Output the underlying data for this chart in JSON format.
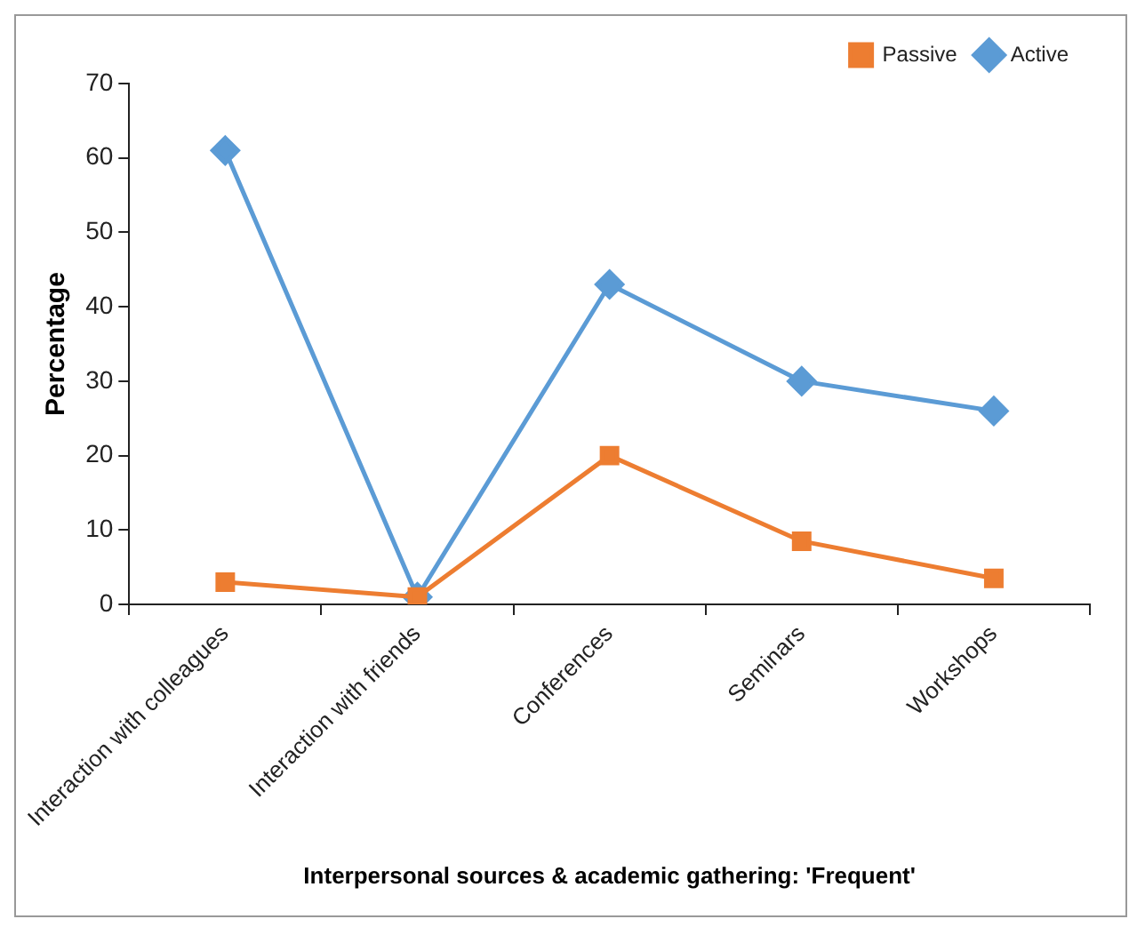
{
  "chart_data": {
    "type": "line",
    "xlabel": "Interpersonal sources & academic gathering: 'Frequent'",
    "ylabel": "Percentage",
    "categories": [
      "Interaction with colleagues",
      "Interaction with friends",
      "Conferences",
      "Seminars",
      "Workshops"
    ],
    "series": [
      {
        "name": "Active",
        "color": "#5b9bd5",
        "marker": "diamond",
        "values": [
          61,
          1,
          43,
          30,
          26
        ]
      },
      {
        "name": "Passive",
        "color": "#ed7d31",
        "marker": "square",
        "values": [
          3,
          1,
          20,
          8.5,
          3.5
        ]
      }
    ],
    "ylim": [
      0,
      70
    ],
    "yticks": [
      0,
      10,
      20,
      30,
      40,
      50,
      60,
      70
    ],
    "grid": false,
    "legend": "top right"
  }
}
